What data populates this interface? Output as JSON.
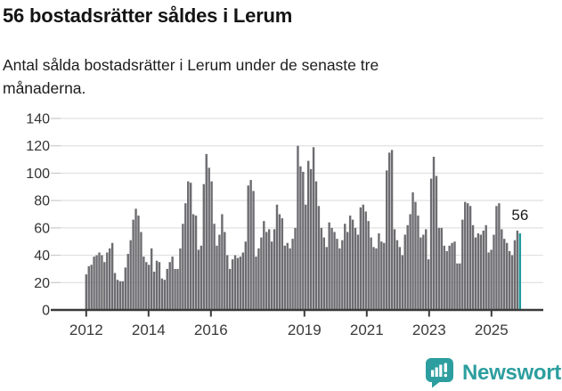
{
  "header": {
    "title": "56 bostadsrätter såldes i Lerum",
    "subtitle": "Antal sålda bostadsrätter i Lerum under de senaste tre månaderna.",
    "subtitle_lines": [
      "Antal sålda bostadsrätter i Lerum under de senaste tre",
      "månaderna."
    ]
  },
  "chart_data": {
    "type": "bar",
    "title": "56 bostadsrätter såldes i Lerum",
    "subtitle": "Antal sålda bostadsrätter i Lerum under de senaste tre månaderna.",
    "xlabel": "",
    "ylabel": "",
    "frequency": "monthly",
    "x_start": "2012-01",
    "x_end": "2025-11",
    "ylim": [
      0,
      140
    ],
    "y_ticks": [
      0,
      20,
      40,
      60,
      80,
      100,
      120,
      140
    ],
    "x_tick_years": [
      2012,
      2014,
      2016,
      2019,
      2021,
      2023,
      2025
    ],
    "grid": true,
    "legend": false,
    "values": [
      26,
      32,
      33,
      39,
      40,
      42,
      40,
      35,
      42,
      45,
      49,
      27,
      22,
      21,
      21,
      31,
      41,
      51,
      66,
      74,
      69,
      57,
      39,
      35,
      33,
      45,
      28,
      36,
      35,
      23,
      22,
      30,
      35,
      39,
      30,
      30,
      45,
      63,
      78,
      94,
      93,
      70,
      69,
      44,
      47,
      92,
      114,
      104,
      94,
      63,
      47,
      55,
      70,
      57,
      40,
      30,
      37,
      40,
      38,
      39,
      42,
      50,
      91,
      95,
      87,
      39,
      45,
      53,
      65,
      57,
      59,
      50,
      59,
      77,
      70,
      67,
      47,
      49,
      45,
      52,
      60,
      120,
      105,
      101,
      77,
      109,
      103,
      119,
      94,
      76,
      60,
      53,
      46,
      64,
      60,
      57,
      52,
      45,
      51,
      63,
      57,
      69,
      66,
      60,
      55,
      75,
      77,
      72,
      65,
      53,
      46,
      45,
      56,
      50,
      49,
      102,
      115,
      117,
      59,
      51,
      46,
      40,
      55,
      62,
      70,
      86,
      79,
      69,
      53,
      55,
      59,
      37,
      96,
      112,
      98,
      60,
      60,
      47,
      43,
      47,
      49,
      50,
      34,
      34,
      66,
      79,
      78,
      76,
      62,
      53,
      56,
      55,
      58,
      62,
      42,
      44,
      55,
      76,
      78,
      59,
      52,
      49,
      43,
      40,
      51,
      58,
      56
    ],
    "highlight": {
      "index": 166,
      "value": 56,
      "label": "56"
    },
    "colors": {
      "bar": "#6d6d71",
      "highlight": "#1f9a9d",
      "grid": "#e0e0e0",
      "axis": "#3a3a3a",
      "tick_label": "#333333",
      "annotation": "#1a1a1a"
    }
  },
  "footer": {
    "logo_text": "Newsworthy",
    "logo_color": "#2d9e9f",
    "icons": {
      "logo": "newsworthy-speech-bubble-bar-chart-icon"
    }
  }
}
